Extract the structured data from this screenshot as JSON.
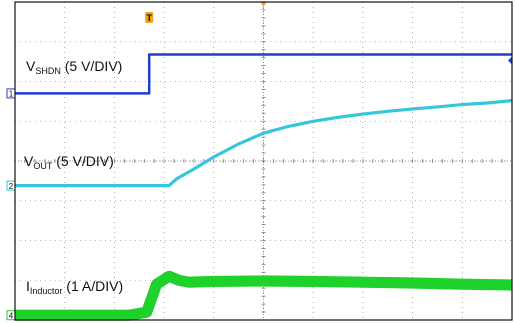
{
  "chart_data": {
    "type": "line",
    "title": "",
    "xlabel": "",
    "ylabel": "",
    "grid": true,
    "x_divisions": 10,
    "y_divisions": 8,
    "xlim": [
      0,
      10
    ],
    "ylim": [
      0,
      8
    ],
    "trigger_marker": "T",
    "series": [
      {
        "name": "VSHDN (5 V/DIV)",
        "label_main": "V",
        "label_sub": "SHDN",
        "label_rest": " (5 V/DIV)",
        "channel": "1",
        "color": "#1f3fd1",
        "ground_level": 5.7,
        "x": [
          0,
          2.7,
          2.7,
          10
        ],
        "y": [
          5.7,
          5.7,
          6.68,
          6.68
        ],
        "band": 0.06
      },
      {
        "name": "VOUT (5 V/DIV)",
        "label_main": "V",
        "label_sub": "OUT",
        "label_rest": " (5 V/DIV)",
        "channel": "2",
        "color": "#36c6dc",
        "ground_level": 3.38,
        "x": [
          0,
          2.4,
          3.1,
          3.25,
          3.6,
          4.0,
          4.5,
          5.0,
          5.5,
          6.0,
          6.5,
          7.0,
          7.5,
          8.0,
          8.5,
          9.0,
          9.5,
          10.0
        ],
        "y": [
          3.38,
          3.38,
          3.38,
          3.55,
          3.8,
          4.1,
          4.43,
          4.7,
          4.87,
          5.0,
          5.1,
          5.18,
          5.25,
          5.31,
          5.36,
          5.42,
          5.46,
          5.52
        ],
        "band": 0.08
      },
      {
        "name": "IInductor (1 A/DIV)",
        "label_main": "I",
        "label_sub": "Inductor",
        "label_rest": " (1 A/DIV)",
        "channel": "4",
        "color": "#1fd12b",
        "ground_level": 0.12,
        "x": [
          0,
          2.3,
          2.65,
          2.85,
          3.1,
          3.3,
          3.5,
          4.0,
          5.0,
          6.0,
          7.0,
          8.0,
          9.0,
          10.0
        ],
        "y": [
          0.12,
          0.12,
          0.2,
          0.9,
          1.1,
          1.0,
          0.95,
          0.97,
          0.98,
          0.97,
          0.95,
          0.93,
          0.9,
          0.88
        ],
        "band": 0.28
      }
    ]
  }
}
